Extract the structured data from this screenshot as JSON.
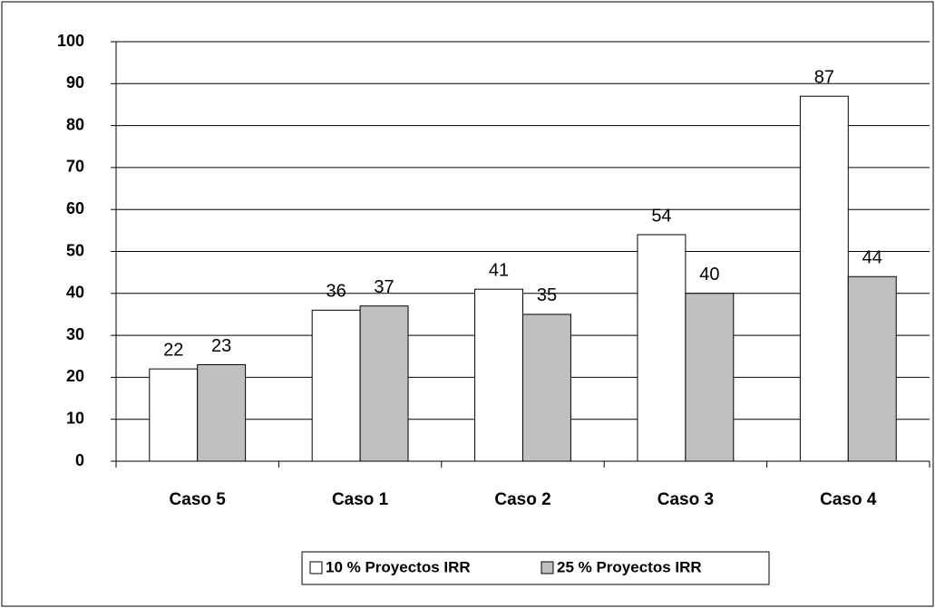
{
  "chart_data": {
    "type": "bar",
    "categories": [
      "Caso 5",
      "Caso 1",
      "Caso 2",
      "Caso 3",
      "Caso 4"
    ],
    "series": [
      {
        "name": "10 % Proyectos IRR",
        "color": "#ffffff",
        "values": [
          22,
          36,
          41,
          54,
          87
        ]
      },
      {
        "name": "25 % Proyectos IRR",
        "color": "#c0c0c0",
        "values": [
          23,
          37,
          35,
          40,
          44
        ]
      }
    ],
    "ylim": [
      0,
      100
    ],
    "yticks": [
      0,
      10,
      20,
      30,
      40,
      50,
      60,
      70,
      80,
      90,
      100
    ],
    "grid": true,
    "legend": "bottom"
  }
}
